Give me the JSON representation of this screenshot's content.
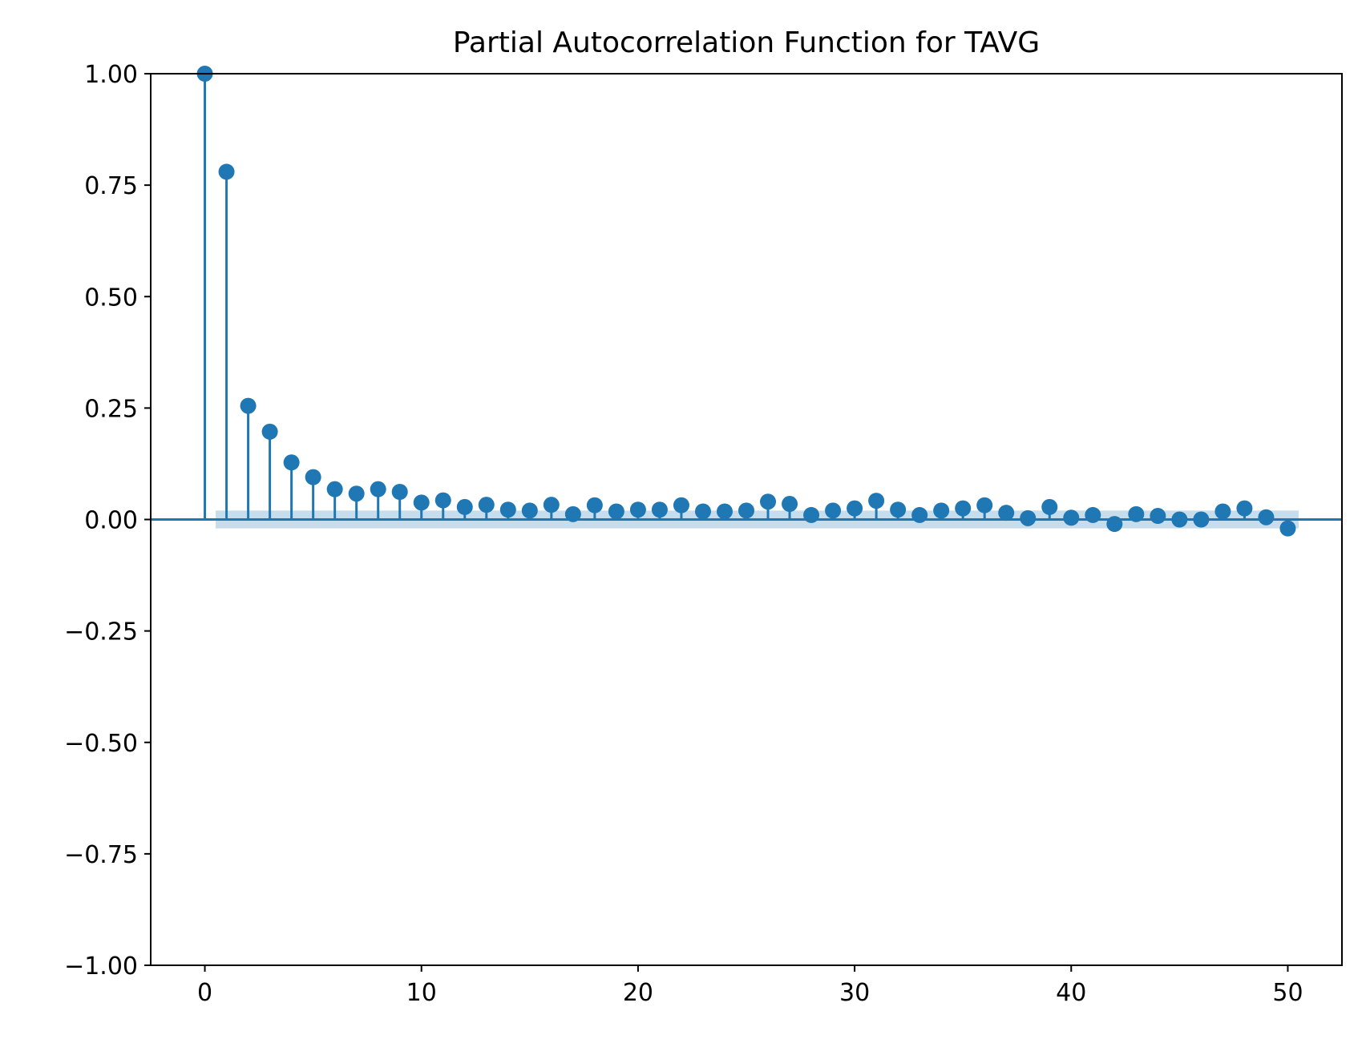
{
  "chart_data": {
    "type": "stem",
    "title": "Partial Autocorrelation Function for TAVG",
    "xlabel": "",
    "ylabel": "",
    "xlim": [
      -2.5,
      52.5
    ],
    "ylim": [
      -1.0,
      1.0
    ],
    "xticks": [
      0,
      10,
      20,
      30,
      40,
      50
    ],
    "xtick_labels": [
      "0",
      "10",
      "20",
      "30",
      "40",
      "50"
    ],
    "yticks": [
      1.0,
      0.75,
      0.5,
      0.25,
      0.0,
      -0.25,
      -0.5,
      -0.75,
      -1.0
    ],
    "ytick_labels": [
      "1.00",
      "0.75",
      "0.50",
      "0.25",
      "0.00",
      "−0.25",
      "−0.50",
      "−0.75",
      "−1.00"
    ],
    "grid": false,
    "series": [
      {
        "name": "PACF",
        "lags": [
          0,
          1,
          2,
          3,
          4,
          5,
          6,
          7,
          8,
          9,
          10,
          11,
          12,
          13,
          14,
          15,
          16,
          17,
          18,
          19,
          20,
          21,
          22,
          23,
          24,
          25,
          26,
          27,
          28,
          29,
          30,
          31,
          32,
          33,
          34,
          35,
          36,
          37,
          38,
          39,
          40,
          41,
          42,
          43,
          44,
          45,
          46,
          47,
          48,
          49,
          50
        ],
        "values": [
          1.0,
          0.78,
          0.255,
          0.197,
          0.128,
          0.095,
          0.068,
          0.058,
          0.068,
          0.062,
          0.038,
          0.043,
          0.028,
          0.033,
          0.022,
          0.02,
          0.033,
          0.012,
          0.032,
          0.018,
          0.022,
          0.022,
          0.032,
          0.018,
          0.018,
          0.02,
          0.04,
          0.035,
          0.01,
          0.02,
          0.025,
          0.042,
          0.022,
          0.01,
          0.02,
          0.025,
          0.032,
          0.015,
          0.003,
          0.028,
          0.004,
          0.01,
          -0.01,
          0.012,
          0.008,
          0.0,
          0.0,
          0.018,
          0.025,
          0.005,
          -0.02
        ]
      }
    ],
    "confidence_band": {
      "from_lag": 0.5,
      "to_lag": 50.5,
      "lower": -0.02,
      "upper": 0.02
    },
    "colors": {
      "series": "#1f77b4",
      "band": "#1f77b4",
      "axes": "#000000"
    }
  }
}
